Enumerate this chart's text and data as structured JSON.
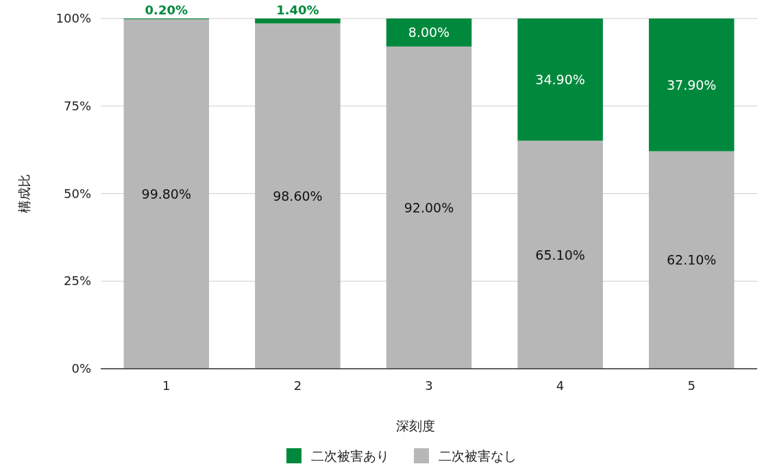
{
  "chart_data": {
    "type": "bar",
    "stacked": true,
    "xlabel": "深刻度",
    "ylabel": "構成比",
    "categories": [
      "1",
      "2",
      "3",
      "4",
      "5"
    ],
    "series": [
      {
        "name": "二次被害なし",
        "color": "#b7b7b7",
        "values": [
          99.8,
          98.6,
          92.0,
          65.1,
          62.1
        ],
        "value_labels": [
          "99.80%",
          "98.60%",
          "92.00%",
          "65.10%",
          "62.10%"
        ]
      },
      {
        "name": "二次被害あり",
        "color": "#00893d",
        "values": [
          0.2,
          1.4,
          8.0,
          34.9,
          37.9
        ],
        "value_labels": [
          "0.20%",
          "1.40%",
          "8.00%",
          "34.90%",
          "37.90%"
        ]
      }
    ],
    "ylim": [
      0,
      100
    ],
    "yticks": [
      {
        "value": 0,
        "label": "0%"
      },
      {
        "value": 25,
        "label": "25%"
      },
      {
        "value": 50,
        "label": "50%"
      },
      {
        "value": 75,
        "label": "75%"
      },
      {
        "value": 100,
        "label": "100%"
      }
    ],
    "grid": "y",
    "legend": "bottom"
  }
}
